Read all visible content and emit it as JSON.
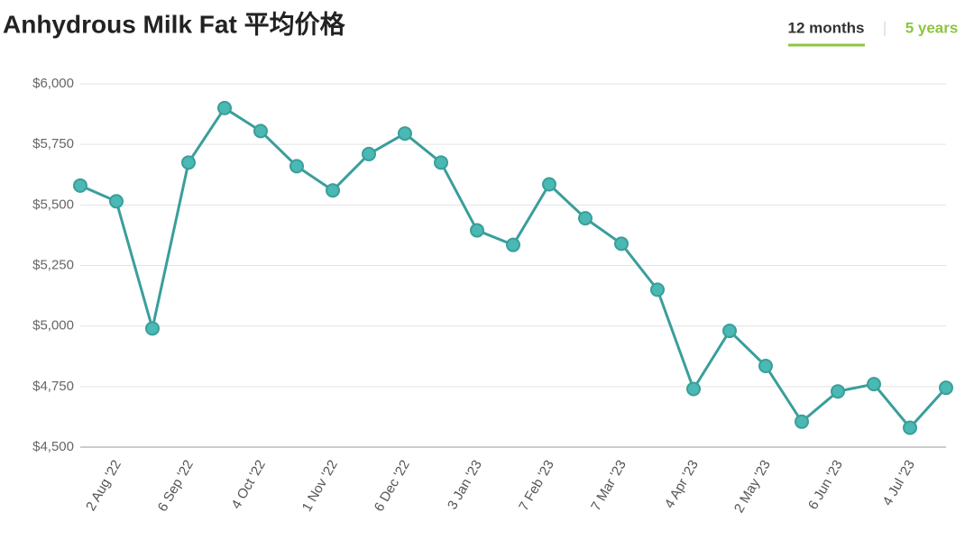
{
  "chart_data": {
    "type": "line",
    "title": "Anhydrous Milk Fat 平均价格",
    "tabs": [
      "12 months",
      "5 years"
    ],
    "categories": [
      null,
      "2 Aug '22",
      null,
      "6 Sep '22",
      null,
      "4 Oct '22",
      null,
      "1 Nov '22",
      null,
      "6 Dec '22",
      null,
      "3 Jan '23",
      null,
      "7 Feb '23",
      null,
      "7 Mar '23",
      null,
      "4 Apr '23",
      null,
      "2 May '23",
      null,
      "6 Jun '23",
      null,
      "4 Jul '23",
      null
    ],
    "series": [
      {
        "name": "Anhydrous Milk Fat",
        "color": "#3a9e9b",
        "values": [
          5580,
          5515,
          4990,
          5675,
          5900,
          5805,
          5660,
          5560,
          5710,
          5795,
          5675,
          5395,
          5335,
          5585,
          5445,
          5340,
          5150,
          4740,
          4980,
          4835,
          4605,
          4730,
          4760,
          4580,
          4745
        ]
      }
    ],
    "ylim": [
      4500,
      6000
    ],
    "yticks": [
      {
        "value": 4500,
        "label": "$4,500"
      },
      {
        "value": 4750,
        "label": "$4,750"
      },
      {
        "value": 5000,
        "label": "$5,000"
      },
      {
        "value": 5250,
        "label": "$5,250"
      },
      {
        "value": 5500,
        "label": "$5,500"
      },
      {
        "value": 5750,
        "label": "$5,750"
      },
      {
        "value": 6000,
        "label": "$6,000"
      }
    ],
    "grid": true
  }
}
